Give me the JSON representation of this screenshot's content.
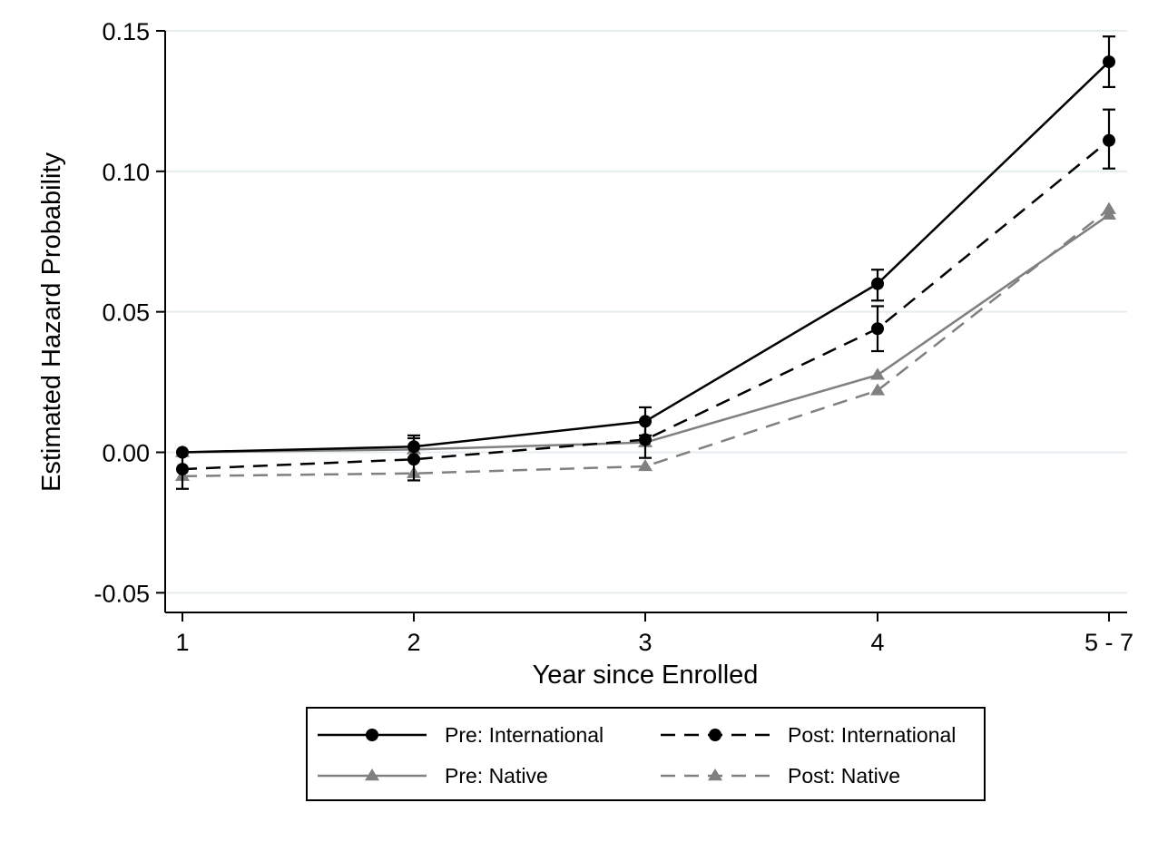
{
  "chart_data": {
    "type": "line",
    "title": "",
    "xlabel": "Year since Enrolled",
    "ylabel": "Estimated Hazard Probability",
    "categories": [
      "1",
      "2",
      "3",
      "4",
      "5 - 7"
    ],
    "yticks": [
      "-0.05",
      "0.00",
      "0.05",
      "0.10",
      "0.15"
    ],
    "ylim": [
      -0.057,
      0.15
    ],
    "grid": true,
    "legend_position": "bottom",
    "series": [
      {
        "name": "Pre: International",
        "color": "#000000",
        "dashed": false,
        "marker": "circle",
        "values": [
          0.0,
          0.002,
          0.011,
          0.06,
          0.139
        ],
        "ci_low": [
          null,
          -0.002,
          0.006,
          0.054,
          0.13
        ],
        "ci_high": [
          null,
          0.006,
          0.016,
          0.065,
          0.148
        ]
      },
      {
        "name": "Post: International",
        "color": "#000000",
        "dashed": true,
        "marker": "circle",
        "values": [
          -0.006,
          -0.0025,
          0.0045,
          0.044,
          0.111
        ],
        "ci_low": [
          -0.013,
          -0.01,
          -0.002,
          0.036,
          0.101
        ],
        "ci_high": [
          0.0,
          0.005,
          0.011,
          0.052,
          0.122
        ]
      },
      {
        "name": "Pre: Native",
        "color": "#808080",
        "dashed": false,
        "marker": "triangle",
        "values": [
          0.0,
          0.001,
          0.0035,
          0.0275,
          0.0845
        ],
        "ci_low": [
          null,
          null,
          null,
          null,
          null
        ],
        "ci_high": [
          null,
          null,
          null,
          null,
          null
        ]
      },
      {
        "name": "Post: Native",
        "color": "#808080",
        "dashed": true,
        "marker": "triangle",
        "values": [
          -0.0085,
          -0.0075,
          -0.005,
          0.022,
          0.0865
        ],
        "ci_low": [
          null,
          null,
          null,
          null,
          null
        ],
        "ci_high": [
          null,
          null,
          null,
          null,
          null
        ]
      }
    ]
  }
}
